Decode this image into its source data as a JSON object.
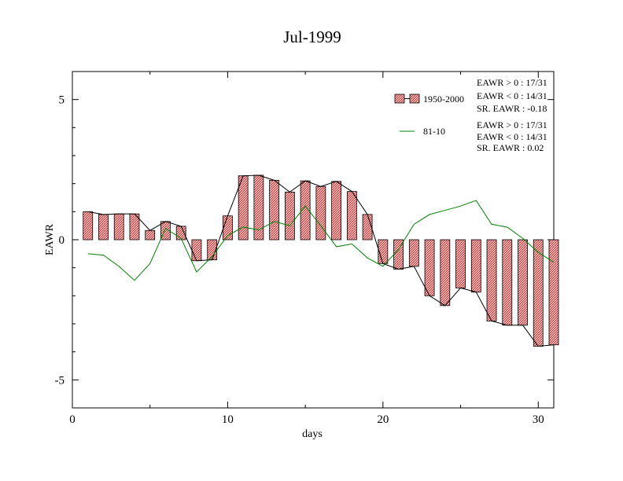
{
  "chart_data": {
    "type": "bar",
    "title": "Jul-1999",
    "xlabel": "days",
    "ylabel": "EAWR",
    "xlim": [
      0,
      31
    ],
    "ylim": [
      -6,
      6
    ],
    "x_ticks": [
      0,
      10,
      20,
      30
    ],
    "y_ticks": [
      -5,
      0,
      5
    ],
    "legend_position": "top-right",
    "series": [
      {
        "name": "1950-2000",
        "type": "bar",
        "color": "#d96b6b",
        "x": [
          1,
          2,
          3,
          4,
          5,
          6,
          7,
          8,
          9,
          10,
          11,
          12,
          13,
          14,
          15,
          16,
          17,
          18,
          19,
          20,
          21,
          22,
          23,
          24,
          25,
          26,
          27,
          28,
          29,
          30,
          31
        ],
        "values": [
          1.0,
          0.9,
          0.92,
          0.92,
          0.33,
          0.65,
          0.48,
          -0.75,
          -0.72,
          0.85,
          2.28,
          2.3,
          2.12,
          1.7,
          2.1,
          1.9,
          2.08,
          1.72,
          0.9,
          -0.85,
          -1.05,
          -0.95,
          -2.0,
          -2.35,
          -1.72,
          -1.87,
          -2.9,
          -3.05,
          -3.05,
          -3.8,
          -3.75
        ]
      },
      {
        "name": "81-10",
        "type": "line",
        "color": "#008000",
        "x": [
          1,
          2,
          3,
          4,
          5,
          6,
          7,
          8,
          9,
          10,
          11,
          12,
          13,
          14,
          15,
          16,
          17,
          18,
          19,
          20,
          21,
          22,
          23,
          24,
          25,
          26,
          27,
          28,
          29,
          30,
          31
        ],
        "values": [
          -0.5,
          -0.55,
          -0.95,
          -1.45,
          -0.85,
          0.4,
          0.05,
          -1.15,
          -0.6,
          0.15,
          0.45,
          0.35,
          0.65,
          0.5,
          1.2,
          0.5,
          -0.25,
          -0.15,
          -0.65,
          -0.95,
          -0.35,
          0.55,
          0.9,
          1.05,
          1.2,
          1.4,
          0.55,
          0.45,
          0.05,
          -0.45,
          -0.8
        ]
      }
    ],
    "annotations": [
      {
        "group": "1950-2000",
        "lines": [
          "EAWR > 0 : 17/31",
          "EAWR < 0 : 14/31",
          "SR. EAWR : -0.18"
        ]
      },
      {
        "group": "81-10",
        "lines": [
          "EAWR > 0 : 17/31",
          "EAWR < 0 : 14/31",
          "SR. EAWR :  0.02"
        ]
      }
    ]
  }
}
